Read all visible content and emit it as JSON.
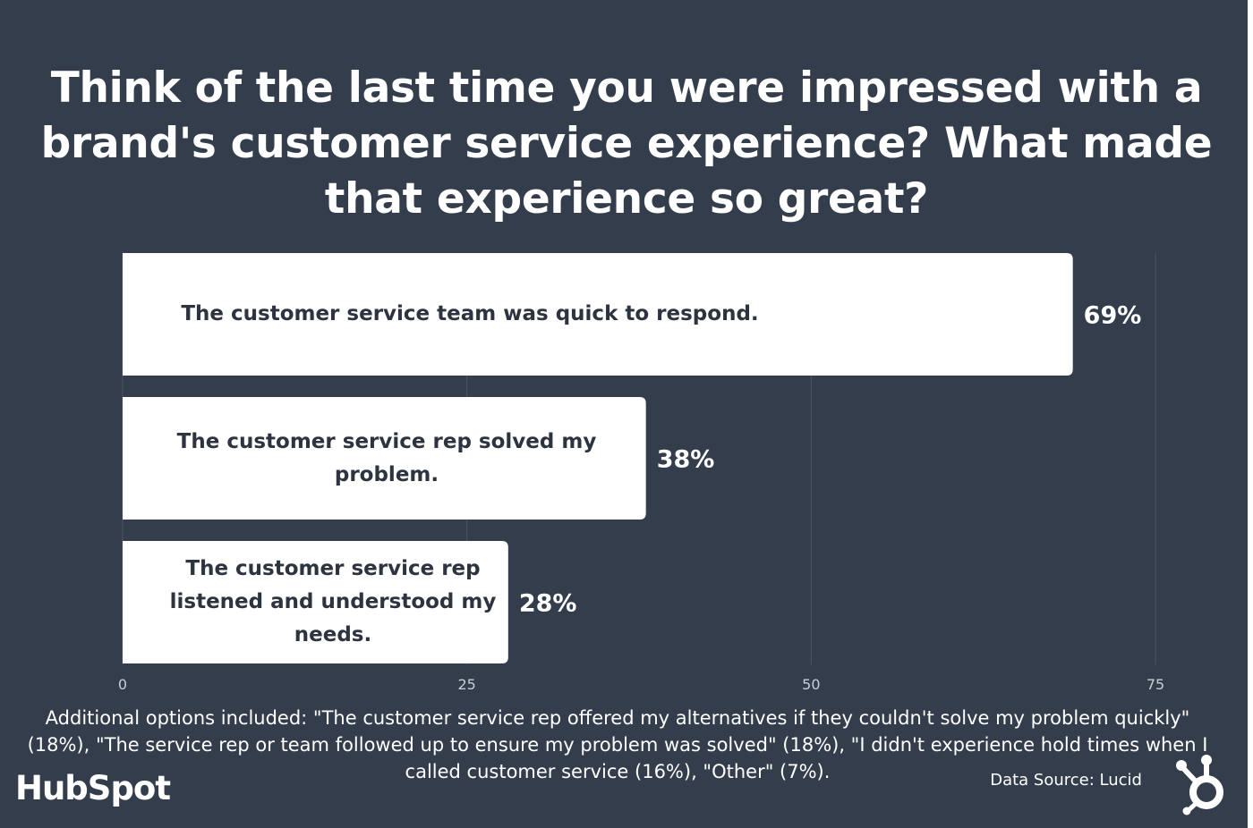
{
  "title": "Think of the last time you were impressed with a brand's customer service experience? What made that experience so great?",
  "chart_data": {
    "type": "bar",
    "orientation": "horizontal",
    "categories": [
      "The customer service team was quick to respond.",
      "The customer service rep solved my problem.",
      "The customer service rep listened and understood my needs."
    ],
    "values": [
      69,
      38,
      28
    ],
    "value_labels": [
      "69%",
      "38%",
      "28%"
    ],
    "xlim": [
      0,
      75
    ],
    "xticks": [
      0,
      25,
      50,
      75
    ],
    "xtick_labels": [
      "0",
      "25",
      "50",
      "75"
    ],
    "grid": true,
    "bar_color": "#ffffff",
    "background_color": "#343d4c"
  },
  "footnote": "Additional options included: \"The customer service rep offered my alternatives if they couldn't solve my problem quickly\" (18%), \"The service rep or team followed up to ensure my problem was solved\" (18%), \"I didn't experience hold times when I called customer service (16%),  \"Other\" (7%).",
  "source": "Data Source: Lucid",
  "brand": {
    "name": "HubSpot",
    "icon": "hubspot-sprocket-icon"
  }
}
